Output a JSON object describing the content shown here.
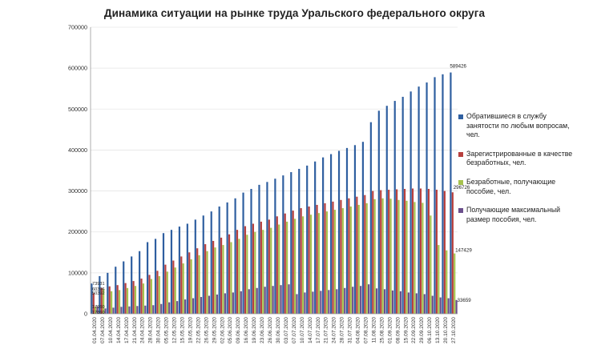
{
  "chart_data": {
    "type": "bar",
    "title": "Динамика ситуации на рынке труда Уральского федерального округа",
    "xlabel": "",
    "ylabel": "",
    "ylim": [
      0,
      700000
    ],
    "yticks": [
      "0",
      "100000",
      "200000",
      "300000",
      "400000",
      "500000",
      "600000",
      "700000"
    ],
    "categories": [
      "01.04.2020",
      "07.04.2020",
      "10.04.2020",
      "14.04.2020",
      "17.04.2020",
      "21.04.2020",
      "24.04.2020",
      "28.04.2020",
      "30.04.2020",
      "05.05.2020",
      "12.05.2020",
      "15.05.2020",
      "19.05.2020",
      "22.05.2020",
      "26.05.2020",
      "29.05.2020",
      "02.06.2020",
      "05.06.2020",
      "09.06.2020",
      "16.06.2020",
      "19.06.2020",
      "23.06.2020",
      "26.06.2020",
      "30.06.2020",
      "03.07.2020",
      "07.07.2020",
      "10.07.2020",
      "14.07.2020",
      "17.07.2020",
      "21.07.2020",
      "24.07.2020",
      "28.07.2020",
      "31.07.2020",
      "04.08.2020",
      "07.08.2020",
      "11.08.2020",
      "25.08.2020",
      "01.09.2020",
      "08.09.2020",
      "15.09.2020",
      "22.09.2020",
      "29.09.2020",
      "06.10.2020",
      "13.10.2020",
      "20.10.2020",
      "27.10.2020"
    ],
    "series": [
      {
        "name": "Обратившиеся в службу занятости по любым вопросам, чел.",
        "color": "#2f5fa0",
        "values": [
          73931,
          92000,
          100000,
          115000,
          128000,
          140000,
          153000,
          175000,
          183000,
          197000,
          205000,
          213000,
          220000,
          230000,
          240000,
          250000,
          262000,
          272000,
          282000,
          296000,
          305000,
          315000,
          322000,
          330000,
          338000,
          346000,
          354000,
          362000,
          372000,
          382000,
          390000,
          398000,
          405000,
          412000,
          420000,
          468000,
          496000,
          508000,
          520000,
          530000,
          543000,
          555000,
          565000,
          578000,
          585000,
          589426
        ]
      },
      {
        "name": "Зарегистрированные в качестве безработных, чел.",
        "color": "#b8403e",
        "values": [
          50392,
          63000,
          67000,
          70000,
          75000,
          80000,
          86000,
          95000,
          105000,
          120000,
          130000,
          140000,
          150000,
          160000,
          170000,
          178000,
          186000,
          194000,
          205000,
          214000,
          220000,
          225000,
          230000,
          238000,
          245000,
          252000,
          258000,
          262000,
          266000,
          270000,
          274000,
          278000,
          282000,
          286000,
          290000,
          300000,
          302000,
          303000,
          304000,
          305000,
          306000,
          306000,
          305000,
          303000,
          300000,
          296726
        ]
      },
      {
        "name": "Безработные, получающие пособие, чел.",
        "color": "#a6c24d",
        "values": [
          17960,
          60396,
          55000,
          58000,
          63000,
          68000,
          74000,
          85000,
          92000,
          103000,
          113000,
          123000,
          133000,
          143000,
          153000,
          162000,
          168000,
          175000,
          183000,
          193000,
          200000,
          205000,
          210000,
          218000,
          225000,
          232000,
          238000,
          242000,
          246000,
          250000,
          254000,
          258000,
          262000,
          266000,
          270000,
          280000,
          282000,
          281000,
          278000,
          276000,
          273000,
          271000,
          240000,
          168000,
          155000,
          147429
        ]
      },
      {
        "name": "Получающие максимальный размер пособия, чел.",
        "color": "#6b4f8c",
        "values": [
          17860,
          13000,
          15000,
          17000,
          18000,
          19000,
          20000,
          21000,
          24000,
          28000,
          31000,
          35000,
          38000,
          41000,
          44000,
          47000,
          50000,
          52000,
          55000,
          60000,
          63000,
          66000,
          68000,
          70000,
          72000,
          48000,
          52000,
          54000,
          56000,
          58000,
          60000,
          63000,
          66000,
          68000,
          72000,
          62000,
          60000,
          57000,
          55000,
          52000,
          50000,
          48000,
          44000,
          40000,
          38000,
          33659
        ]
      }
    ],
    "data_labels": [
      {
        "text": "589426"
      },
      {
        "text": "296726"
      },
      {
        "text": "147429"
      },
      {
        "text": "33659"
      },
      {
        "text": "73931"
      },
      {
        "text": "60396"
      },
      {
        "text": "50392"
      },
      {
        "text": "17960"
      },
      {
        "text": "17860"
      }
    ]
  }
}
